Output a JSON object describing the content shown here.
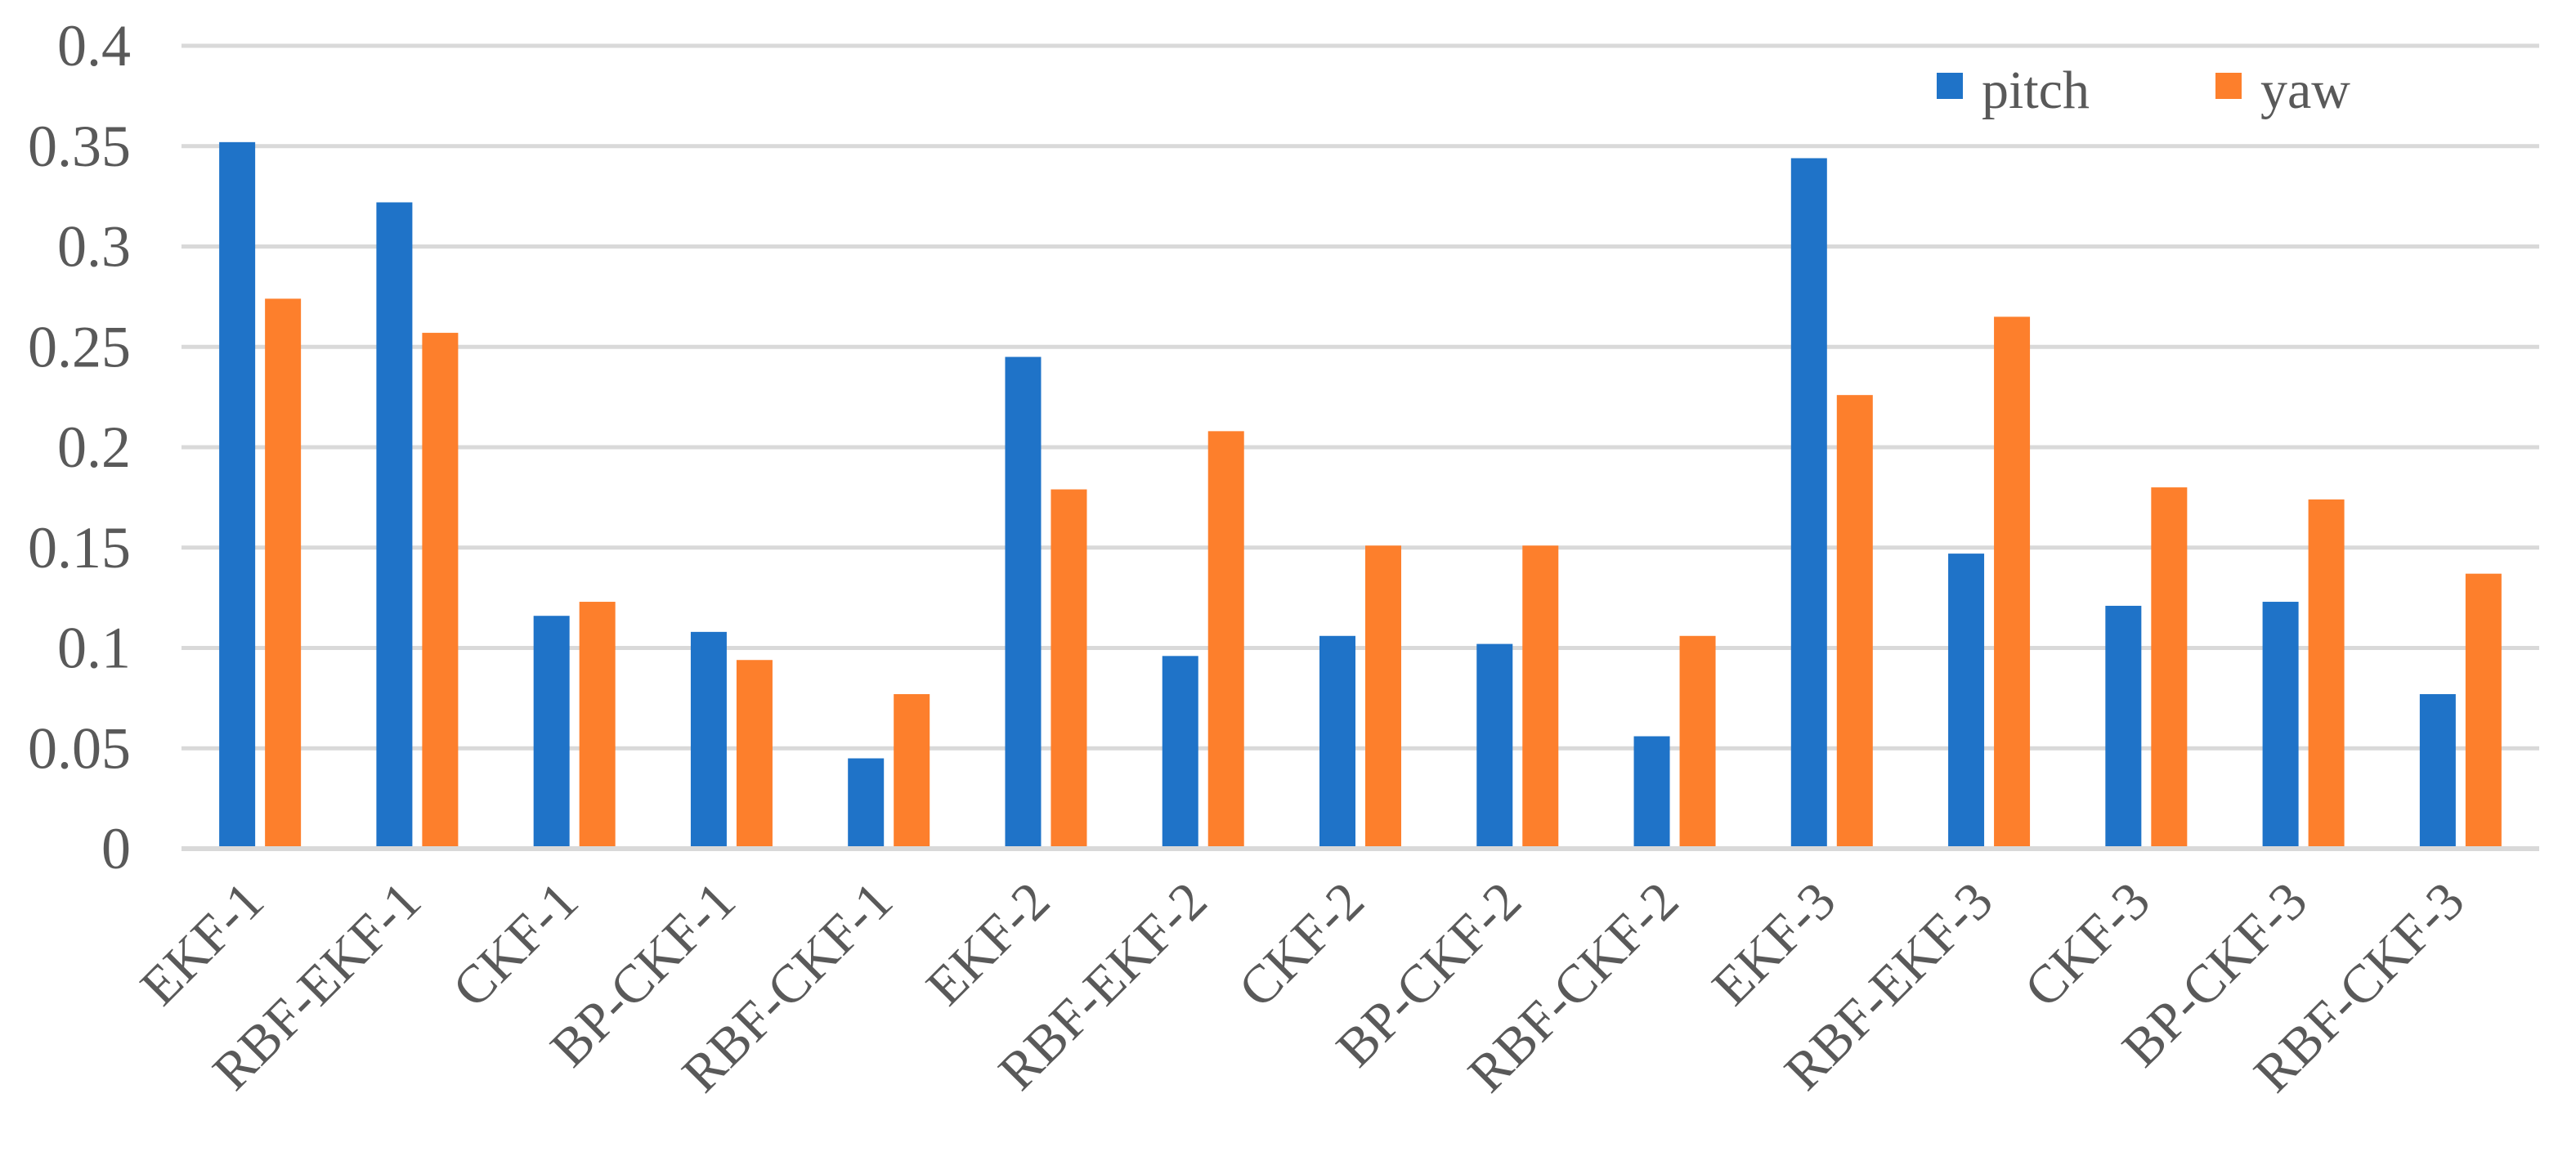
{
  "chart_data": {
    "type": "bar",
    "title": "",
    "xlabel": "",
    "ylabel": "",
    "ylim": [
      0,
      0.4
    ],
    "y_ticks": [
      "0",
      "0.05",
      "0.1",
      "0.15",
      "0.2",
      "0.25",
      "0.3",
      "0.35",
      "0.4"
    ],
    "y_tick_values": [
      0,
      0.05,
      0.1,
      0.15,
      0.2,
      0.25,
      0.3,
      0.35,
      0.4
    ],
    "grid": true,
    "legend_position": "top-right",
    "categories": [
      "EKF-1",
      "RBF-EKF-1",
      "CKF-1",
      "BP-CKF-1",
      "RBF-CKF-1",
      "EKF-2",
      "RBF-EKF-2",
      "CKF-2",
      "BP-CKF-2",
      "RBF-CKF-2",
      "EKF-3",
      "RBF-EKF-3",
      "CKF-3",
      "BP-CKF-3",
      "RBF-CKF-3"
    ],
    "series": [
      {
        "name": "pitch",
        "color": "#1f73c8",
        "values": [
          0.352,
          0.322,
          0.116,
          0.108,
          0.045,
          0.245,
          0.096,
          0.106,
          0.102,
          0.056,
          0.344,
          0.147,
          0.121,
          0.123,
          0.077
        ]
      },
      {
        "name": "yaw",
        "color": "#fd7f2c",
        "values": [
          0.274,
          0.257,
          0.123,
          0.094,
          0.077,
          0.179,
          0.208,
          0.151,
          0.151,
          0.106,
          0.226,
          0.265,
          0.18,
          0.174,
          0.137
        ]
      }
    ]
  }
}
